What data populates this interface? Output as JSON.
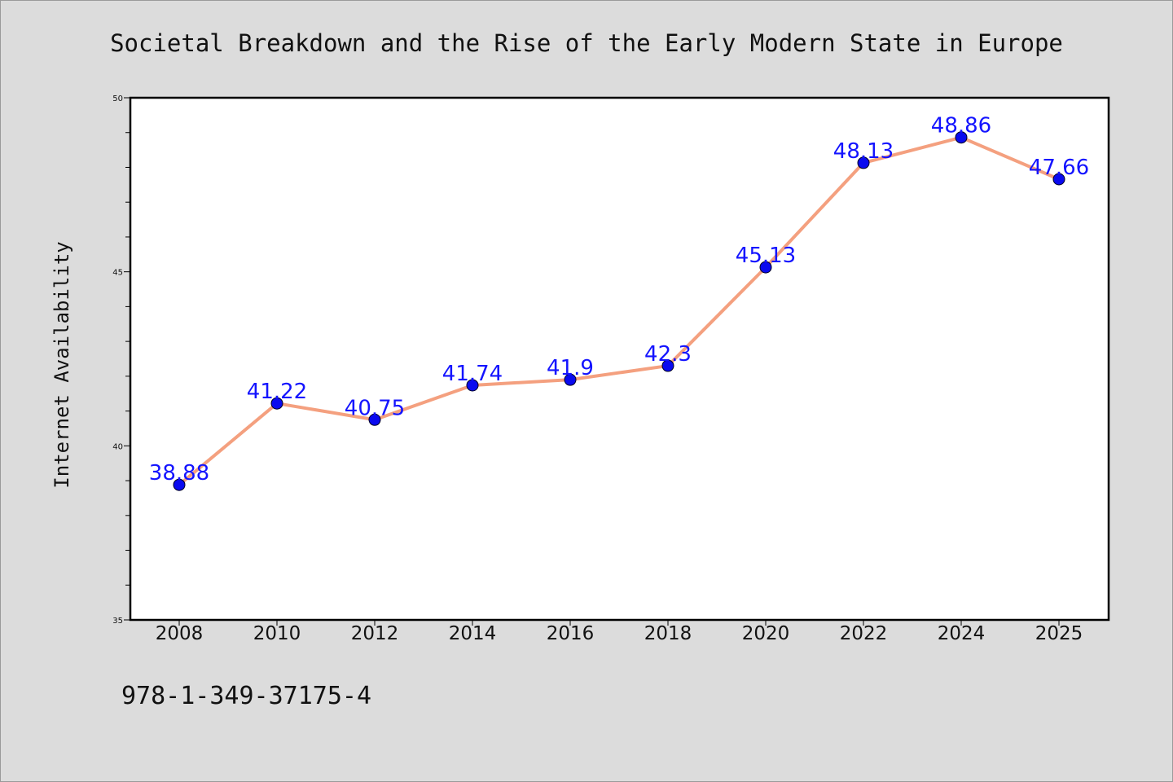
{
  "chart_data": {
    "type": "line",
    "title": "Societal Breakdown and the Rise of the Early Modern State in Europe",
    "ylabel": "Internet Availability",
    "x": [
      "2008",
      "2010",
      "2012",
      "2014",
      "2016",
      "2018",
      "2020",
      "2022",
      "2024",
      "2025"
    ],
    "values": [
      38.88,
      41.22,
      40.75,
      41.74,
      41.9,
      42.3,
      45.13,
      48.13,
      48.86,
      47.66
    ],
    "value_labels": [
      "38.88",
      "41.22",
      "40.75",
      "41.74",
      "41.9",
      "42.3",
      "45.13",
      "48.13",
      "48.86",
      "47.66"
    ],
    "ylim": [
      35,
      50
    ],
    "yticks": [
      "35",
      "40",
      "45",
      "50"
    ],
    "grid": false,
    "legend": "none",
    "line_color": "#f4a07f",
    "marker_color": "#0a0aef",
    "label_color": "#1414ff"
  },
  "footer": {
    "isbn": "978-1-349-37175-4"
  }
}
